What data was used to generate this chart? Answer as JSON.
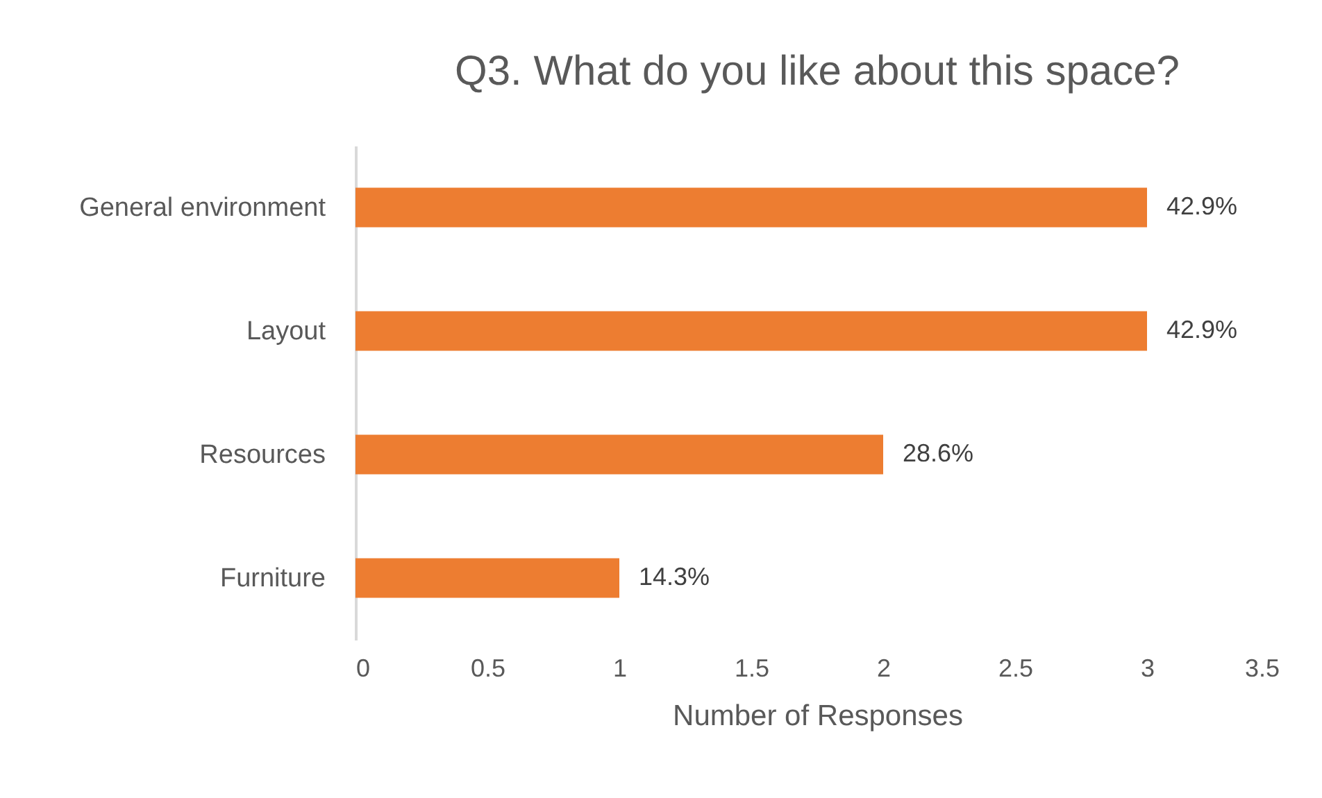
{
  "chart_data": {
    "type": "bar",
    "orientation": "horizontal",
    "title": "Q3. What do you like about this space?",
    "xlabel": "Number of Responses",
    "categories": [
      "General environment",
      "Layout",
      "Resources",
      "Furniture"
    ],
    "values": [
      3,
      3,
      2,
      1
    ],
    "annotations": [
      {
        "text": "42.9%",
        "x": 3,
        "y": "General environment"
      },
      {
        "text": "42.9%",
        "x": 3,
        "y": "Layout"
      },
      {
        "text": "28.6%",
        "x": 2,
        "y": "Resources"
      },
      {
        "text": "14.3%",
        "x": 1,
        "y": "Furniture"
      }
    ],
    "color": "#ed7d31",
    "xlim": [
      0,
      3.5
    ],
    "xticks": [
      0,
      0.5,
      1,
      1.5,
      2,
      2.5,
      3,
      3.5
    ]
  }
}
